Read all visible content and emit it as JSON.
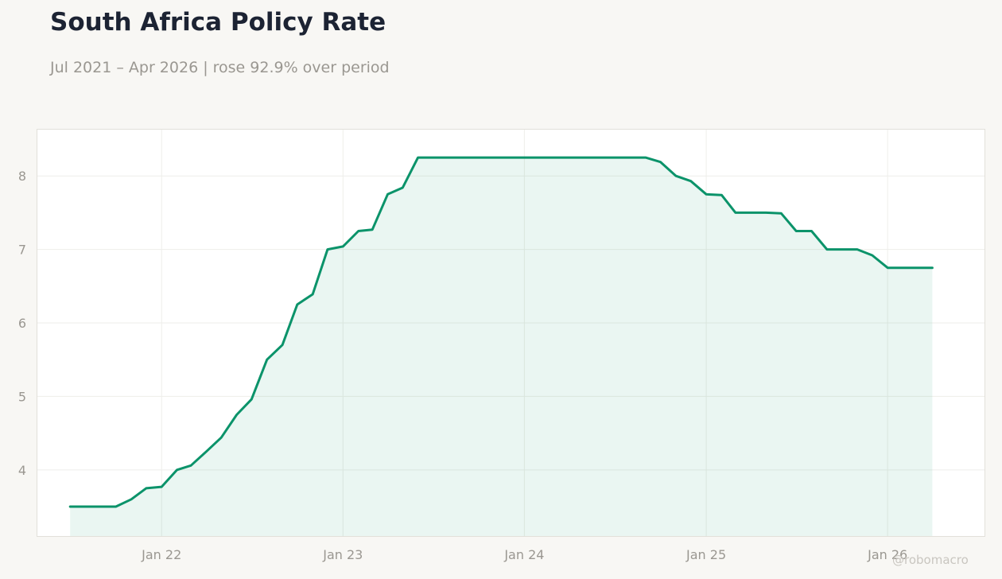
{
  "header": {
    "title": "South Africa Policy Rate",
    "subtitle": "Jul 2021 – Apr 2026 | rose 92.9% over period"
  },
  "watermark": "@robomacro",
  "colors": {
    "line": "#0b936a",
    "fill": "#0b936a",
    "background": "#f8f7f4",
    "plot_background": "#ffffff",
    "grid": "#eeeeea",
    "text_muted": "#9a9791",
    "title": "#1c2333"
  },
  "chart_data": {
    "type": "area",
    "title": "South Africa Policy Rate",
    "subtitle": "Jul 2021 – Apr 2026 | rose 92.9% over period",
    "xlabel": "",
    "ylabel": "",
    "ylim": [
      3.1,
      8.63
    ],
    "xlim": [
      "2021-04-26",
      "2026-07-15"
    ],
    "grid": true,
    "legend": "none",
    "x_ticks": [
      {
        "date": "2022-01-01",
        "label": "Jan 22"
      },
      {
        "date": "2023-01-01",
        "label": "Jan 23"
      },
      {
        "date": "2024-01-01",
        "label": "Jan 24"
      },
      {
        "date": "2025-01-01",
        "label": "Jan 25"
      },
      {
        "date": "2026-01-01",
        "label": "Jan 26"
      }
    ],
    "y_ticks": [
      4,
      5,
      6,
      7,
      8
    ],
    "series": [
      {
        "x": [
          "2021-07-01",
          "2021-08-01",
          "2021-09-01",
          "2021-10-01",
          "2021-11-01",
          "2021-12-01",
          "2022-01-01",
          "2022-02-01",
          "2022-03-01",
          "2022-04-01",
          "2022-05-01",
          "2022-06-01",
          "2022-07-01",
          "2022-08-01",
          "2022-09-01",
          "2022-10-01",
          "2022-11-01",
          "2022-12-01",
          "2023-01-01",
          "2023-02-01",
          "2023-03-01",
          "2023-04-01",
          "2023-05-01",
          "2023-06-01",
          "2023-07-01",
          "2023-08-01",
          "2023-09-01",
          "2023-10-01",
          "2023-11-01",
          "2023-12-01",
          "2024-01-01",
          "2024-02-01",
          "2024-03-01",
          "2024-04-01",
          "2024-05-01",
          "2024-06-01",
          "2024-07-01",
          "2024-08-01",
          "2024-09-01",
          "2024-10-01",
          "2024-11-01",
          "2024-12-01",
          "2025-01-01",
          "2025-02-01",
          "2025-03-01",
          "2025-04-01",
          "2025-05-01",
          "2025-06-01",
          "2025-07-01",
          "2025-08-01",
          "2025-09-01",
          "2025-10-01",
          "2025-11-01",
          "2025-12-01",
          "2026-01-01",
          "2026-02-01",
          "2026-03-01",
          "2026-04-01"
        ],
        "values": [
          3.5,
          3.5,
          3.5,
          3.5,
          3.6,
          3.75,
          3.77,
          4.0,
          4.06,
          4.25,
          4.44,
          4.75,
          4.96,
          5.5,
          5.7,
          6.25,
          6.39,
          7.0,
          7.04,
          7.25,
          7.27,
          7.75,
          7.84,
          8.25,
          8.25,
          8.25,
          8.25,
          8.25,
          8.25,
          8.25,
          8.25,
          8.25,
          8.25,
          8.25,
          8.25,
          8.25,
          8.25,
          8.25,
          8.25,
          8.19,
          8.0,
          7.93,
          7.75,
          7.74,
          7.5,
          7.5,
          7.5,
          7.49,
          7.25,
          7.25,
          7.0,
          7.0,
          7.0,
          6.92,
          6.75,
          6.75,
          6.75,
          6.75
        ]
      }
    ]
  }
}
